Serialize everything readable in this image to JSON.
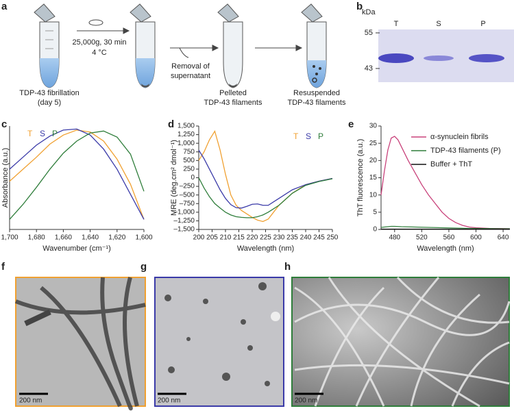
{
  "figure": {
    "panel_labels": [
      "a",
      "b",
      "c",
      "d",
      "e",
      "f",
      "g",
      "h"
    ],
    "scheme": {
      "fibrillation": [
        "TDP-43 fibrillation",
        "(day 5)"
      ],
      "spin": [
        "25,000g, 30 min",
        "4 °C"
      ],
      "removal": [
        "Removal of",
        "supernatant"
      ],
      "pelleted": [
        "Pelleted",
        "TDP-43 filaments"
      ],
      "resuspended": [
        "Resuspended",
        "TDP-43 filaments"
      ]
    },
    "gel": {
      "unit": "kDa",
      "markers": [
        "55",
        "43"
      ],
      "lanes": [
        "T",
        "S",
        "P"
      ]
    },
    "scale_bars": [
      "200 nm",
      "200 nm",
      "200 nm"
    ]
  },
  "chart_data": [
    {
      "type": "line",
      "xlabel": "Wavenumber (cm⁻¹)",
      "ylabel": "Absorbance (a.u.)",
      "x": [
        1700,
        1690,
        1680,
        1670,
        1660,
        1650,
        1640,
        1630,
        1620,
        1610,
        1600
      ],
      "xlim": [
        1700,
        1600
      ],
      "ylim": [
        0,
        1.03
      ],
      "xticks": [
        {
          "value": 1700,
          "label": "1,700"
        },
        {
          "value": 1680,
          "label": "1,680"
        },
        {
          "value": 1660,
          "label": "1,660"
        },
        {
          "value": 1640,
          "label": "1,640"
        },
        {
          "value": 1620,
          "label": "1,620"
        },
        {
          "value": 1600,
          "label": "1,600"
        }
      ],
      "legend": "upper left",
      "legend_layout": "row",
      "series": [
        {
          "name": "T",
          "color": "#f0a030",
          "values": [
            0.48,
            0.6,
            0.72,
            0.85,
            0.94,
            0.99,
            0.97,
            0.88,
            0.7,
            0.45,
            0.1
          ]
        },
        {
          "name": "S",
          "color": "#3a3aa8",
          "values": [
            0.6,
            0.72,
            0.84,
            0.93,
            0.99,
            1.0,
            0.94,
            0.8,
            0.6,
            0.35,
            0.1
          ]
        },
        {
          "name": "P",
          "color": "#2e7d3a",
          "values": [
            0.1,
            0.25,
            0.42,
            0.6,
            0.76,
            0.88,
            0.96,
            0.98,
            0.92,
            0.75,
            0.38
          ]
        }
      ]
    },
    {
      "type": "line",
      "xlabel": "Wavelength (nm)",
      "ylabel": "MRE (deg.cm² dmol⁻¹)",
      "x": [
        200,
        202,
        204,
        206,
        208,
        210,
        212,
        214,
        216,
        218,
        220,
        222,
        224,
        226,
        228,
        230,
        235,
        240,
        245,
        250
      ],
      "xlim": [
        200,
        250
      ],
      "ylim": [
        -1500,
        1500
      ],
      "xticks": [
        200,
        205,
        210,
        215,
        220,
        225,
        230,
        235,
        240,
        245,
        250
      ],
      "yticks": [
        {
          "value": 1500,
          "label": "1,500"
        },
        {
          "value": 1250,
          "label": "1,250"
        },
        {
          "value": 1000,
          "label": "1,000"
        },
        750,
        500,
        250,
        0,
        {
          "value": -250,
          "label": "–250"
        },
        {
          "value": -500,
          "label": "–500"
        },
        {
          "value": -750,
          "label": "–750"
        },
        {
          "value": -1000,
          "label": "–1,000"
        },
        {
          "value": -1250,
          "label": "–1,250"
        },
        {
          "value": -1500,
          "label": "–1,500"
        }
      ],
      "legend": "upper right",
      "legend_layout": "row",
      "series": [
        {
          "name": "T",
          "color": "#f0a030",
          "values": [
            500,
            750,
            1100,
            1350,
            800,
            100,
            -500,
            -800,
            -950,
            -1050,
            -1150,
            -1230,
            -1270,
            -1200,
            -1000,
            -800,
            -450,
            -200,
            -100,
            -20
          ]
        },
        {
          "name": "S",
          "color": "#3a3aa8",
          "values": [
            800,
            550,
            250,
            -50,
            -350,
            -600,
            -780,
            -870,
            -880,
            -830,
            -770,
            -760,
            -800,
            -800,
            -700,
            -600,
            -350,
            -200,
            -100,
            -20
          ]
        },
        {
          "name": "P",
          "color": "#2e7d3a",
          "values": [
            0,
            -300,
            -550,
            -750,
            -880,
            -1000,
            -1080,
            -1130,
            -1150,
            -1160,
            -1160,
            -1130,
            -1080,
            -1000,
            -900,
            -800,
            -450,
            -220,
            -110,
            -30
          ]
        }
      ]
    },
    {
      "type": "line",
      "xlabel": "Wavelength (nm)",
      "ylabel": "ThT fluorescence (a.u.)",
      "x": [
        460,
        465,
        470,
        475,
        480,
        485,
        490,
        500,
        510,
        520,
        530,
        540,
        550,
        560,
        570,
        580,
        590,
        600,
        620,
        640,
        650
      ],
      "xlim": [
        460,
        650
      ],
      "ylim": [
        0,
        30
      ],
      "xticks": [
        480,
        520,
        560,
        600,
        640
      ],
      "yticks": [
        0,
        5,
        10,
        15,
        20,
        25,
        30
      ],
      "legend": "upper right",
      "legend_layout": "column",
      "series": [
        {
          "name": "α-synuclein fibrils",
          "color": "#c8417a",
          "values": [
            10,
            17,
            23,
            26.5,
            27,
            26,
            24,
            20,
            16.5,
            13,
            10,
            7.5,
            5,
            3.2,
            2,
            1.2,
            0.7,
            0.5,
            0.3,
            0.25,
            0.2
          ]
        },
        {
          "name": "TDP-43 filaments (P)",
          "color": "#2e7d3a",
          "values": [
            0.6,
            0.7,
            0.8,
            0.9,
            0.9,
            0.85,
            0.8,
            0.75,
            0.7,
            0.65,
            0.6,
            0.55,
            0.5,
            0.45,
            0.4,
            0.35,
            0.3,
            0.3,
            0.25,
            0.2,
            0.2
          ]
        },
        {
          "name": "Buffer + ThT",
          "color": "#111111",
          "values": [
            0.1,
            0.1,
            0.1,
            0.1,
            0.1,
            0.1,
            0.1,
            0.1,
            0.1,
            0.1,
            0.1,
            0.1,
            0.1,
            0.1,
            0.1,
            0.1,
            0.1,
            0.1,
            0.1,
            0.1,
            0.1
          ]
        }
      ]
    }
  ]
}
